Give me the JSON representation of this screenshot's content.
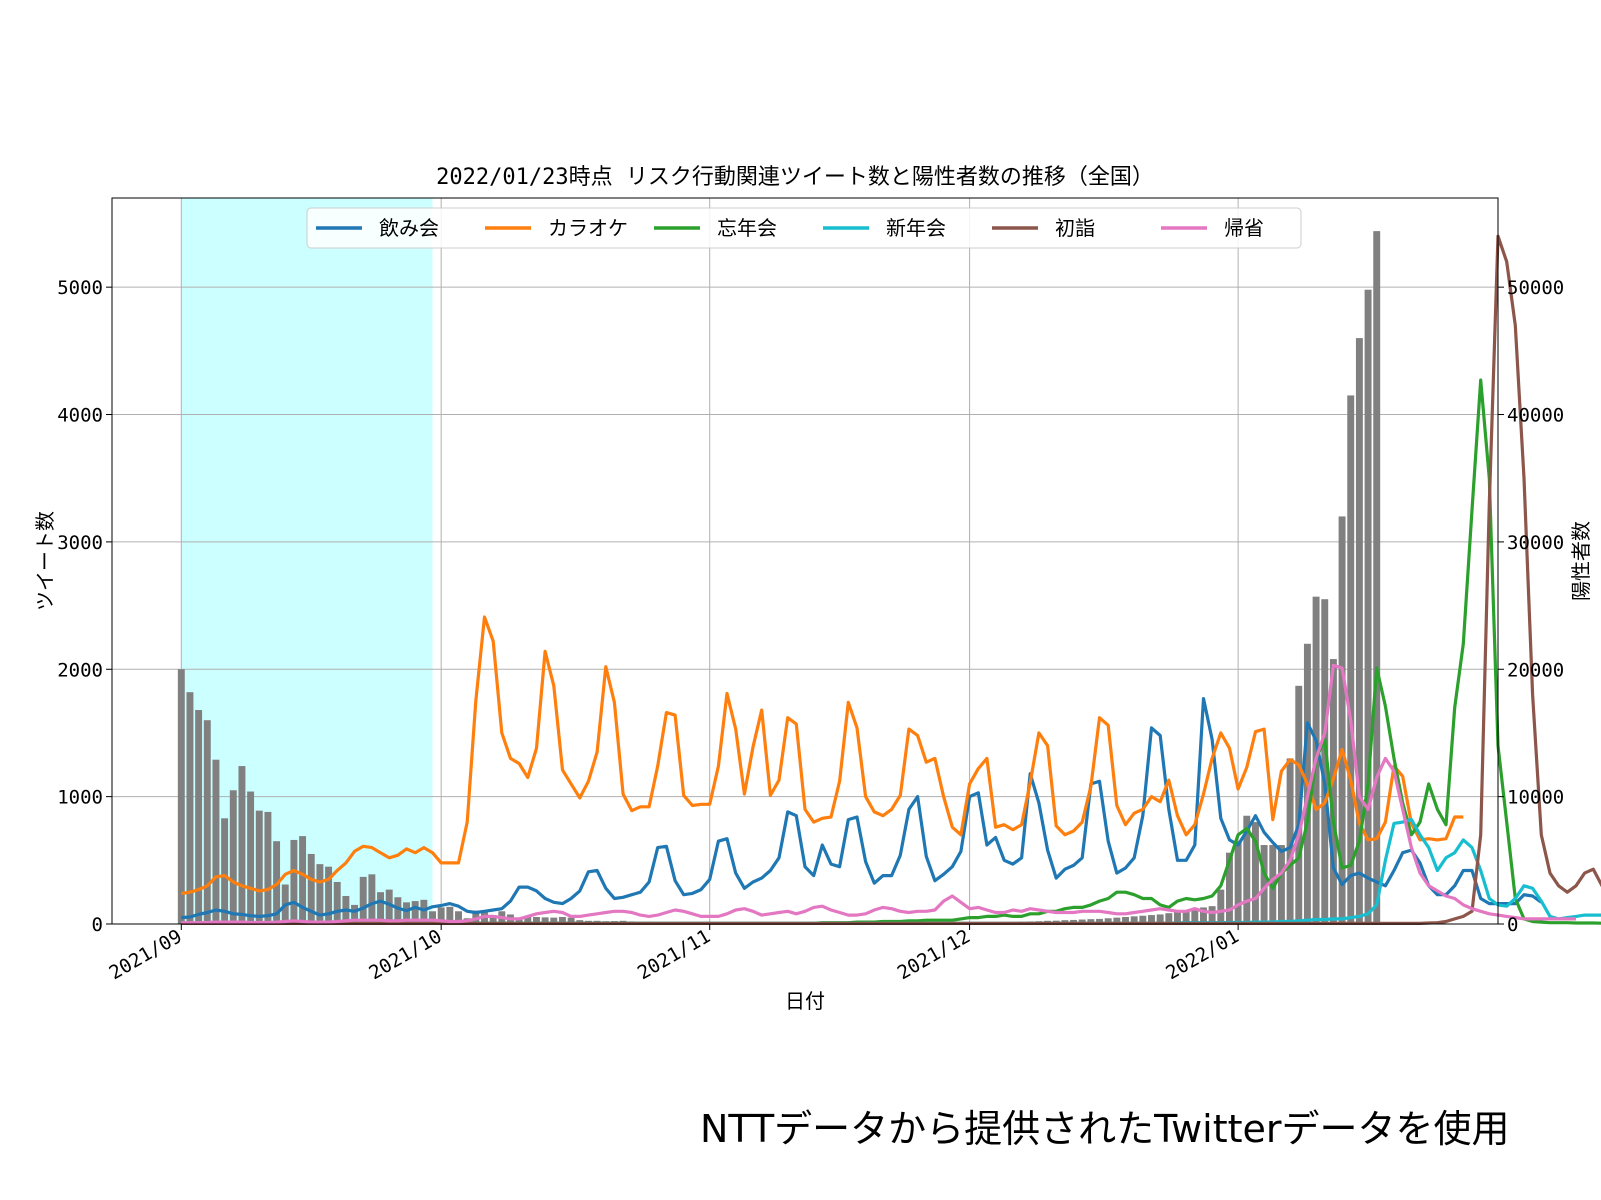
{
  "footnote": "NTTデータから提供されたTwitterデータを使用",
  "chart_data": {
    "type": "line",
    "title": "2022/01/23時点 リスク行動関連ツイート数と陽性者数の推移（全国）",
    "xlabel": "日付",
    "ylabel": "ツイート数",
    "y2label": "陽性者数",
    "x_start": "2021-09-01",
    "x_end": "2022-01-23",
    "xlim": [
      "2021-08-24",
      "2022-01-31"
    ],
    "ylim": [
      0,
      5700
    ],
    "y2lim": [
      0,
      57000
    ],
    "xticks": [
      "2021/09",
      "2021/10",
      "2021/11",
      "2021/12",
      "2022/01"
    ],
    "yticks": [
      0,
      1000,
      2000,
      3000,
      4000,
      5000
    ],
    "y2ticks": [
      0,
      10000,
      20000,
      30000,
      40000,
      50000
    ],
    "grid": true,
    "legend_position": "top-center",
    "shaded_span": {
      "start": "2021-09-01",
      "end": "2021-09-30",
      "color": "#ccffff"
    },
    "bar_series": {
      "axis": "right",
      "color": "#808080",
      "values": [
        20000,
        18200,
        16800,
        16000,
        12900,
        8300,
        10500,
        12400,
        10400,
        8900,
        8800,
        6500,
        3100,
        6600,
        6900,
        5500,
        4700,
        4500,
        3300,
        2200,
        1500,
        3700,
        3900,
        2500,
        2700,
        2100,
        1700,
        1800,
        1900,
        1000,
        1300,
        1350,
        1000,
        450,
        1050,
        1100,
        700,
        1000,
        750,
        500,
        600,
        550,
        520,
        500,
        550,
        500,
        300,
        250,
        250,
        220,
        230,
        250,
        200,
        150,
        180,
        160,
        150,
        140,
        130,
        120,
        110,
        120,
        100,
        90,
        95,
        100,
        110,
        100,
        90,
        80,
        80,
        85,
        80,
        75,
        75,
        80,
        80,
        75,
        70,
        70,
        70,
        75,
        80,
        80,
        80,
        90,
        100,
        110,
        110,
        120,
        120,
        120,
        130,
        140,
        150,
        150,
        160,
        180,
        200,
        220,
        250,
        260,
        300,
        320,
        350,
        380,
        400,
        450,
        500,
        550,
        600,
        650,
        700,
        750,
        850,
        950,
        1000,
        1200,
        1300,
        1400,
        2700,
        5600,
        6500,
        8500,
        8000,
        6200,
        6200,
        6200,
        13000,
        18700,
        22000,
        25700,
        25500,
        20800,
        32000,
        41500,
        46000,
        49800,
        54400
      ]
    },
    "series": [
      {
        "name": "飲み会",
        "color": "#1f77b4",
        "values": [
          50,
          55,
          75,
          90,
          110,
          100,
          80,
          75,
          65,
          60,
          65,
          80,
          150,
          170,
          130,
          100,
          70,
          80,
          100,
          110,
          100,
          125,
          160,
          180,
          155,
          125,
          105,
          130,
          110,
          135,
          145,
          160,
          140,
          100,
          90,
          100,
          110,
          120,
          180,
          290,
          290,
          260,
          200,
          170,
          160,
          200,
          260,
          410,
          420,
          280,
          200,
          210,
          230,
          250,
          330,
          600,
          610,
          340,
          230,
          240,
          270,
          350,
          650,
          670,
          400,
          280,
          330,
          360,
          420,
          520,
          880,
          850,
          450,
          380,
          620,
          470,
          450,
          820,
          840,
          490,
          320,
          380,
          380,
          540,
          900,
          1000,
          530,
          340,
          390,
          450,
          570,
          1000,
          1030,
          620,
          680,
          500,
          470,
          520,
          1180,
          950,
          580,
          360,
          430,
          460,
          520,
          1100,
          1120,
          650,
          400,
          440,
          520,
          850,
          1540,
          1480,
          900,
          500,
          500,
          620,
          1770,
          1450,
          830,
          660,
          620,
          730,
          850,
          720,
          640,
          570,
          600,
          780,
          1580,
          1440,
          1100,
          440,
          310,
          380,
          400,
          360,
          330,
          300,
          420,
          560,
          580,
          480,
          300,
          230,
          230,
          300,
          420,
          420,
          200,
          160,
          160,
          160,
          160,
          230,
          220,
          170
        ]
      },
      {
        "name": "カラオケ",
        "color": "#ff7f0e",
        "values": [
          240,
          250,
          270,
          300,
          370,
          380,
          330,
          300,
          280,
          260,
          270,
          310,
          390,
          420,
          390,
          350,
          330,
          350,
          420,
          480,
          570,
          610,
          600,
          560,
          520,
          540,
          590,
          560,
          600,
          560,
          480,
          480,
          480,
          800,
          1750,
          2410,
          2220,
          1500,
          1300,
          1260,
          1150,
          1380,
          2140,
          1870,
          1210,
          1100,
          990,
          1120,
          1350,
          2020,
          1740,
          1020,
          890,
          920,
          920,
          1240,
          1660,
          1640,
          1010,
          930,
          940,
          940,
          1240,
          1810,
          1530,
          1020,
          1390,
          1680,
          1010,
          1130,
          1620,
          1570,
          900,
          800,
          830,
          840,
          1120,
          1740,
          1540,
          1000,
          880,
          850,
          900,
          1010,
          1530,
          1480,
          1270,
          1300,
          1000,
          760,
          700,
          1100,
          1220,
          1300,
          760,
          780,
          740,
          780,
          1110,
          1500,
          1400,
          770,
          700,
          730,
          800,
          1080,
          1620,
          1560,
          930,
          780,
          870,
          900,
          1000,
          960,
          1130,
          850,
          700,
          780,
          1020,
          1300,
          1500,
          1380,
          1060,
          1230,
          1510,
          1530,
          820,
          1200,
          1290,
          1250,
          1100,
          900,
          950,
          1140,
          1370,
          1130,
          790,
          660,
          670,
          800,
          1240,
          1160,
          790,
          660,
          670,
          660,
          670,
          840,
          840
        ]
      },
      {
        "name": "忘年会",
        "color": "#2ca02c",
        "values": [
          5,
          5,
          5,
          5,
          5,
          5,
          5,
          5,
          5,
          5,
          5,
          5,
          5,
          5,
          5,
          5,
          5,
          5,
          5,
          5,
          5,
          5,
          5,
          5,
          5,
          5,
          5,
          5,
          5,
          5,
          5,
          5,
          5,
          5,
          5,
          5,
          5,
          5,
          5,
          5,
          5,
          5,
          5,
          5,
          5,
          5,
          5,
          5,
          5,
          5,
          5,
          5,
          5,
          5,
          5,
          5,
          5,
          5,
          5,
          5,
          5,
          5,
          5,
          5,
          5,
          5,
          5,
          5,
          5,
          5,
          5,
          5,
          5,
          5,
          10,
          10,
          10,
          10,
          15,
          15,
          15,
          20,
          20,
          20,
          25,
          25,
          30,
          30,
          30,
          30,
          40,
          50,
          50,
          60,
          60,
          70,
          60,
          60,
          80,
          80,
          100,
          100,
          120,
          130,
          130,
          150,
          180,
          200,
          250,
          250,
          230,
          200,
          200,
          150,
          130,
          180,
          200,
          190,
          200,
          220,
          300,
          500,
          700,
          750,
          650,
          400,
          280,
          400,
          460,
          520,
          800,
          1300,
          1450,
          800,
          440,
          460,
          650,
          1100,
          2010,
          1710,
          1300,
          950,
          700,
          800,
          1100,
          900,
          780,
          1700,
          2200,
          3250,
          4270,
          3500,
          1400,
          800,
          200,
          40,
          20,
          15,
          10,
          10,
          10,
          8,
          8,
          8,
          6,
          6,
          6,
          5,
          5,
          5,
          5,
          5,
          5,
          5,
          5,
          5,
          5,
          5
        ]
      },
      {
        "name": "新年会",
        "color": "#17becf",
        "values": [
          5,
          5,
          5,
          5,
          5,
          5,
          5,
          5,
          5,
          5,
          5,
          5,
          5,
          5,
          5,
          5,
          5,
          5,
          5,
          5,
          5,
          5,
          5,
          5,
          5,
          5,
          5,
          5,
          5,
          5,
          5,
          5,
          5,
          5,
          5,
          5,
          5,
          5,
          5,
          5,
          5,
          5,
          5,
          5,
          5,
          5,
          5,
          5,
          5,
          5,
          5,
          5,
          5,
          5,
          5,
          5,
          5,
          5,
          5,
          5,
          5,
          5,
          5,
          5,
          5,
          5,
          5,
          5,
          5,
          5,
          5,
          5,
          5,
          5,
          5,
          5,
          5,
          5,
          5,
          5,
          5,
          5,
          5,
          5,
          5,
          5,
          5,
          5,
          5,
          5,
          5,
          5,
          5,
          5,
          5,
          5,
          5,
          5,
          5,
          5,
          5,
          5,
          5,
          5,
          5,
          5,
          5,
          5,
          5,
          5,
          5,
          5,
          5,
          5,
          5,
          8,
          10,
          10,
          10,
          10,
          10,
          12,
          12,
          12,
          15,
          15,
          15,
          20,
          20,
          25,
          30,
          35,
          35,
          40,
          40,
          50,
          60,
          80,
          150,
          500,
          790,
          800,
          820,
          700,
          600,
          420,
          520,
          560,
          660,
          600,
          420,
          200,
          150,
          140,
          200,
          300,
          280,
          180,
          60,
          40,
          50,
          60,
          70,
          70,
          70,
          60
        ]
      },
      {
        "name": "初詣",
        "color": "#8c564b",
        "values": [
          5,
          5,
          5,
          5,
          5,
          5,
          5,
          5,
          5,
          5,
          5,
          5,
          5,
          5,
          5,
          5,
          5,
          5,
          5,
          5,
          5,
          5,
          5,
          5,
          5,
          5,
          5,
          5,
          5,
          5,
          5,
          5,
          5,
          5,
          5,
          5,
          5,
          5,
          5,
          5,
          5,
          5,
          5,
          5,
          5,
          5,
          5,
          5,
          5,
          5,
          5,
          5,
          5,
          5,
          5,
          5,
          5,
          5,
          5,
          5,
          5,
          5,
          5,
          5,
          5,
          5,
          5,
          5,
          5,
          5,
          5,
          5,
          5,
          5,
          5,
          5,
          5,
          5,
          5,
          5,
          5,
          5,
          5,
          5,
          5,
          5,
          5,
          5,
          5,
          5,
          5,
          5,
          5,
          5,
          5,
          5,
          5,
          5,
          5,
          5,
          5,
          5,
          5,
          5,
          5,
          5,
          5,
          5,
          5,
          5,
          5,
          5,
          5,
          5,
          5,
          5,
          5,
          5,
          5,
          5,
          5,
          5,
          5,
          5,
          5,
          5,
          5,
          5,
          5,
          5,
          5,
          5,
          5,
          5,
          5,
          5,
          5,
          5,
          5,
          5,
          5,
          5,
          5,
          5,
          8,
          10,
          20,
          40,
          60,
          100,
          700,
          3300,
          5400,
          5200,
          4700,
          3500,
          1800,
          700,
          400,
          300,
          250,
          300,
          400,
          430,
          300,
          200,
          150,
          120,
          100,
          80,
          60,
          40,
          30,
          25,
          20,
          20,
          15,
          15
        ]
      },
      {
        "name": "帰省",
        "color": "#e377c2",
        "values": [
          10,
          10,
          10,
          12,
          15,
          15,
          15,
          15,
          12,
          12,
          12,
          15,
          20,
          25,
          20,
          15,
          15,
          15,
          20,
          25,
          30,
          30,
          30,
          30,
          25,
          25,
          30,
          30,
          30,
          30,
          25,
          20,
          20,
          25,
          40,
          60,
          60,
          50,
          40,
          40,
          60,
          80,
          90,
          100,
          90,
          60,
          60,
          70,
          80,
          90,
          100,
          100,
          90,
          70,
          60,
          70,
          90,
          110,
          100,
          80,
          60,
          60,
          60,
          80,
          110,
          120,
          100,
          70,
          80,
          90,
          100,
          80,
          100,
          130,
          140,
          110,
          90,
          70,
          70,
          80,
          110,
          130,
          120,
          100,
          90,
          100,
          100,
          110,
          180,
          220,
          170,
          120,
          130,
          110,
          90,
          90,
          110,
          100,
          120,
          110,
          100,
          90,
          90,
          90,
          100,
          100,
          100,
          90,
          80,
          80,
          90,
          100,
          110,
          120,
          110,
          100,
          100,
          120,
          100,
          90,
          100,
          110,
          150,
          180,
          200,
          280,
          350,
          400,
          500,
          700,
          1000,
          1300,
          1500,
          2030,
          2010,
          1600,
          1000,
          900,
          1150,
          1300,
          1200,
          900,
          600,
          400,
          300,
          260,
          220,
          200,
          150,
          120,
          100,
          80,
          70,
          60,
          50,
          40,
          40,
          40,
          40,
          40,
          40,
          40
        ]
      }
    ]
  }
}
